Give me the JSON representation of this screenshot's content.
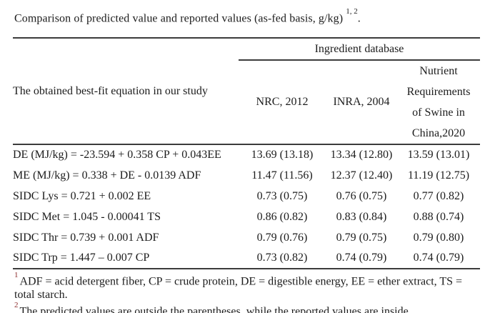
{
  "caption": {
    "text": "Comparison of predicted value and reported values (as-fed basis, g/kg)",
    "superscript": "1, 2",
    "period": "."
  },
  "table": {
    "header": {
      "equation_column": "The obtained best-fit equation in our study",
      "spanner": "Ingredient database",
      "db1": "NRC, 2012",
      "db2": "INRA, 2004",
      "db3_lines": [
        "Nutrient",
        "Requirements",
        "of Swine in",
        "China,2020"
      ]
    },
    "rows": [
      {
        "eq": "DE (MJ/kg) = -23.594 + 0.358 CP + 0.043EE",
        "v1": "13.69 (13.18)",
        "v2": "13.34 (12.80)",
        "v3": "13.59 (13.01)"
      },
      {
        "eq": "ME (MJ/kg) = 0.338 + DE - 0.0139 ADF",
        "v1": "11.47 (11.56)",
        "v2": "12.37 (12.40)",
        "v3": "11.19 (12.75)"
      },
      {
        "eq": "SIDC Lys = 0.721 + 0.002 EE",
        "v1": "0.73 (0.75)",
        "v2": "0.76 (0.75)",
        "v3": "0.77 (0.82)"
      },
      {
        "eq": "SIDC Met = 1.045 - 0.00041 TS",
        "v1": "0.86 (0.82)",
        "v2": "0.83 (0.84)",
        "v3": "0.88 (0.74)"
      },
      {
        "eq": "SIDC Thr = 0.739 + 0.001 ADF",
        "v1": "0.79 (0.76)",
        "v2": "0.79 (0.75)",
        "v3": "0.79 (0.80)"
      },
      {
        "eq": "SIDC Trp = 1.447 – 0.007 CP",
        "v1": "0.73 (0.82)",
        "v2": "0.74 (0.79)",
        "v3": "0.74 (0.79)"
      }
    ]
  },
  "footnotes": [
    {
      "marker": "1",
      "line1": "ADF = acid detergent fiber, CP = crude protein, DE = digestible energy, EE = ether extract, TS =",
      "line2": "total starch."
    },
    {
      "marker": "2",
      "text": "The predicted values are outside the parentheses, while the reported values are inside."
    }
  ],
  "colors": {
    "footnote_marker": "#8b2b2b",
    "rule": "#3c3c3c",
    "text": "#1c1c1c",
    "background": "#ffffff"
  }
}
